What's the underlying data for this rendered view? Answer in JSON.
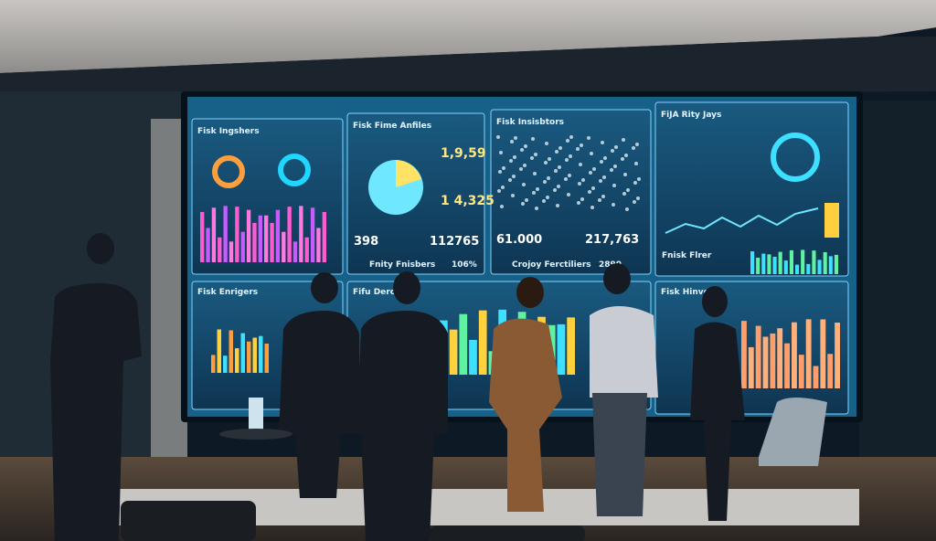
{
  "screen": {
    "top_panels": [
      {
        "title": "Fisk Ingshers"
      },
      {
        "title": "Fisk Fime Anfiles",
        "stats": [
          "1,9,59",
          "1 4,325"
        ]
      },
      {
        "title": "Fisk Insisbtors"
      },
      {
        "title": "FiJA Rity Jays"
      }
    ],
    "metrics": [
      "398",
      "112765",
      "61.000",
      "217,763"
    ],
    "footer": [
      {
        "label": "Fnity Fnisbers",
        "value": "106%"
      },
      {
        "label": "Crojoy Ferctiliers",
        "value": "2890"
      }
    ],
    "side_label": "Fnisk Flrer",
    "bottom_panels": [
      {
        "title": "Fisk Enrigers"
      },
      {
        "title": "Fifu Dercts"
      },
      {
        "title": "Fisk Hinvesr"
      }
    ]
  }
}
